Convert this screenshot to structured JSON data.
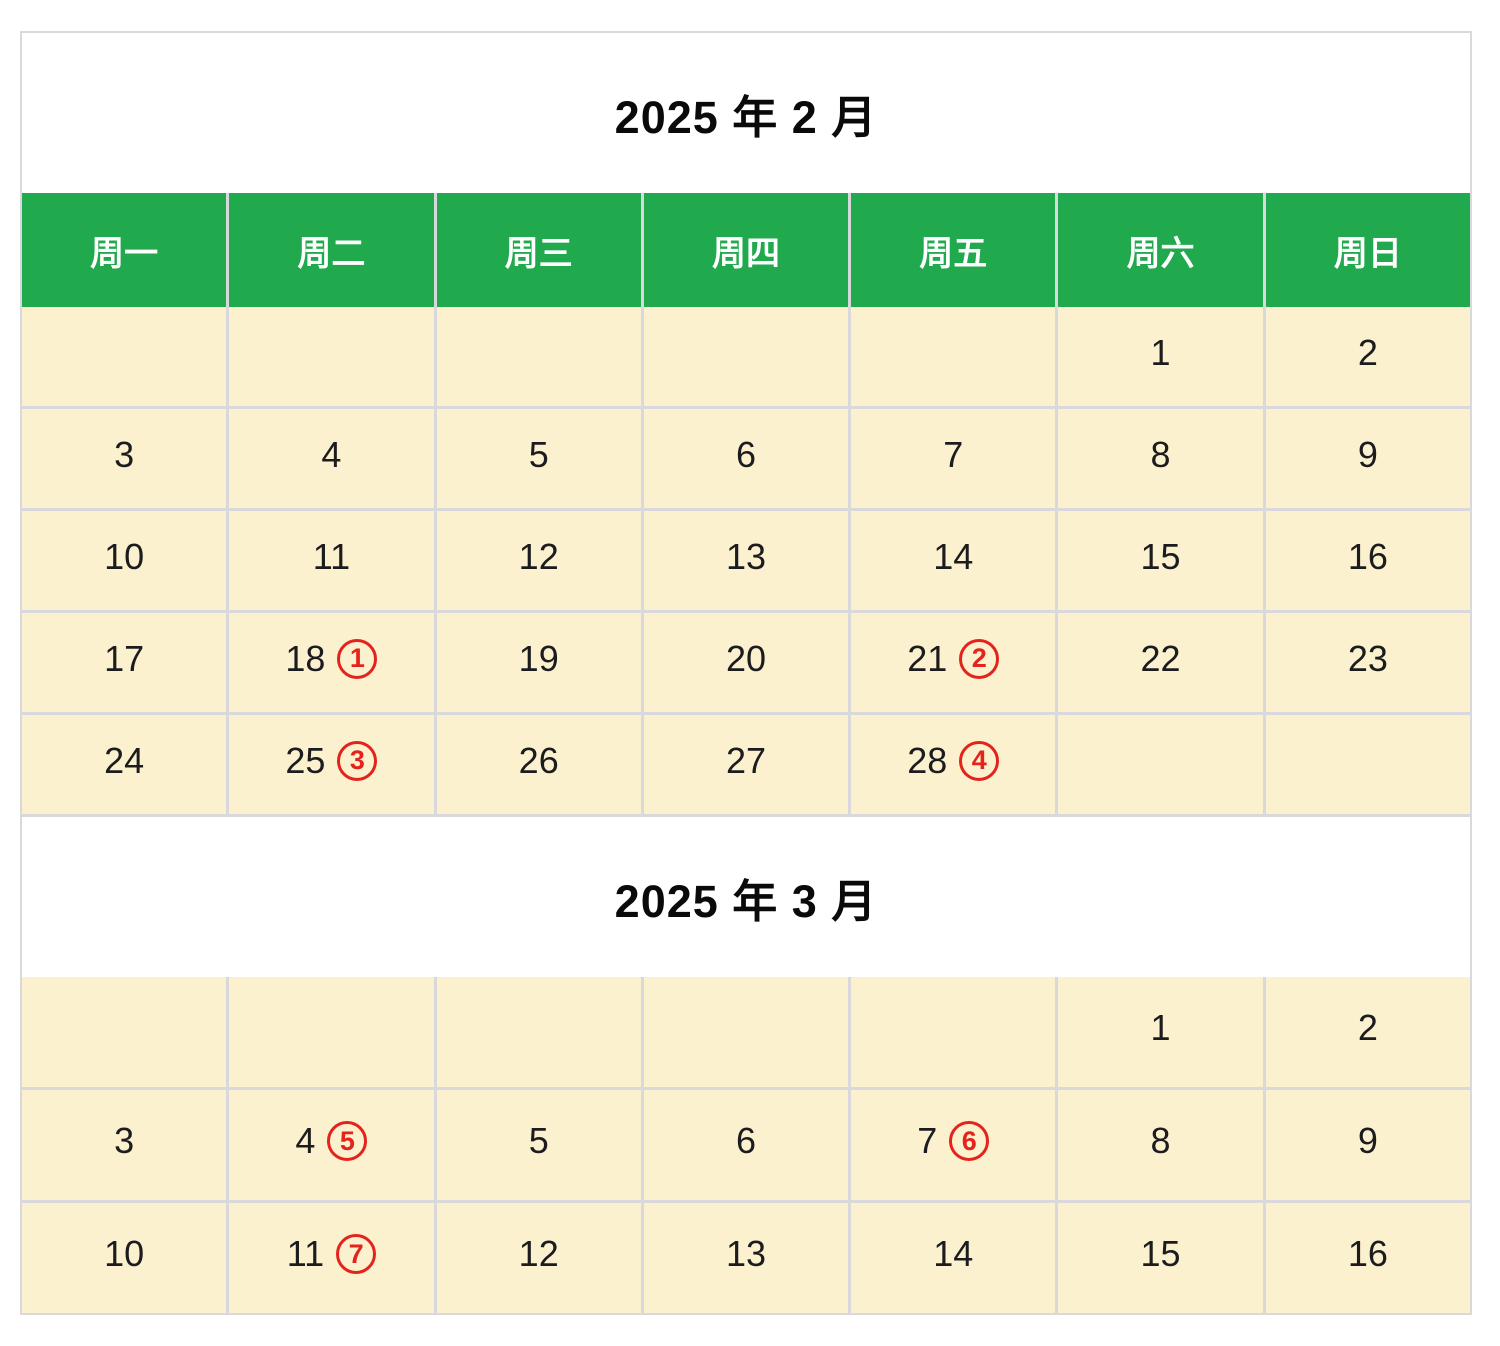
{
  "colors": {
    "header_green": "#21a94d",
    "cell_cream": "#fbf1cf",
    "grid_line": "#d8d8dd",
    "mark_red": "#e3231c",
    "header_text": "#ffffff",
    "day_text": "#1c1c1e"
  },
  "calendars": [
    {
      "title": "2025 年 2 月",
      "weekdays": [
        "周一",
        "周二",
        "周三",
        "周四",
        "周五",
        "周六",
        "周日"
      ],
      "weeks": [
        [
          {
            "d": ""
          },
          {
            "d": ""
          },
          {
            "d": ""
          },
          {
            "d": ""
          },
          {
            "d": ""
          },
          {
            "d": "1"
          },
          {
            "d": "2"
          }
        ],
        [
          {
            "d": "3"
          },
          {
            "d": "4"
          },
          {
            "d": "5"
          },
          {
            "d": "6"
          },
          {
            "d": "7"
          },
          {
            "d": "8"
          },
          {
            "d": "9"
          }
        ],
        [
          {
            "d": "10"
          },
          {
            "d": "11"
          },
          {
            "d": "12"
          },
          {
            "d": "13"
          },
          {
            "d": "14"
          },
          {
            "d": "15"
          },
          {
            "d": "16"
          }
        ],
        [
          {
            "d": "17"
          },
          {
            "d": "18",
            "m": "1"
          },
          {
            "d": "19"
          },
          {
            "d": "20"
          },
          {
            "d": "21",
            "m": "2"
          },
          {
            "d": "22"
          },
          {
            "d": "23"
          }
        ],
        [
          {
            "d": "24"
          },
          {
            "d": "25",
            "m": "3"
          },
          {
            "d": "26"
          },
          {
            "d": "27"
          },
          {
            "d": "28",
            "m": "4"
          },
          {
            "d": ""
          },
          {
            "d": ""
          }
        ]
      ]
    },
    {
      "title": "2025 年 3 月",
      "weekdays": null,
      "weeks": [
        [
          {
            "d": ""
          },
          {
            "d": ""
          },
          {
            "d": ""
          },
          {
            "d": ""
          },
          {
            "d": ""
          },
          {
            "d": "1"
          },
          {
            "d": "2"
          }
        ],
        [
          {
            "d": "3"
          },
          {
            "d": "4",
            "m": "5"
          },
          {
            "d": "5"
          },
          {
            "d": "6"
          },
          {
            "d": "7",
            "m": "6"
          },
          {
            "d": "8"
          },
          {
            "d": "9"
          }
        ],
        [
          {
            "d": "10"
          },
          {
            "d": "11",
            "m": "7"
          },
          {
            "d": "12"
          },
          {
            "d": "13"
          },
          {
            "d": "14"
          },
          {
            "d": "15"
          },
          {
            "d": "16"
          }
        ]
      ]
    }
  ]
}
